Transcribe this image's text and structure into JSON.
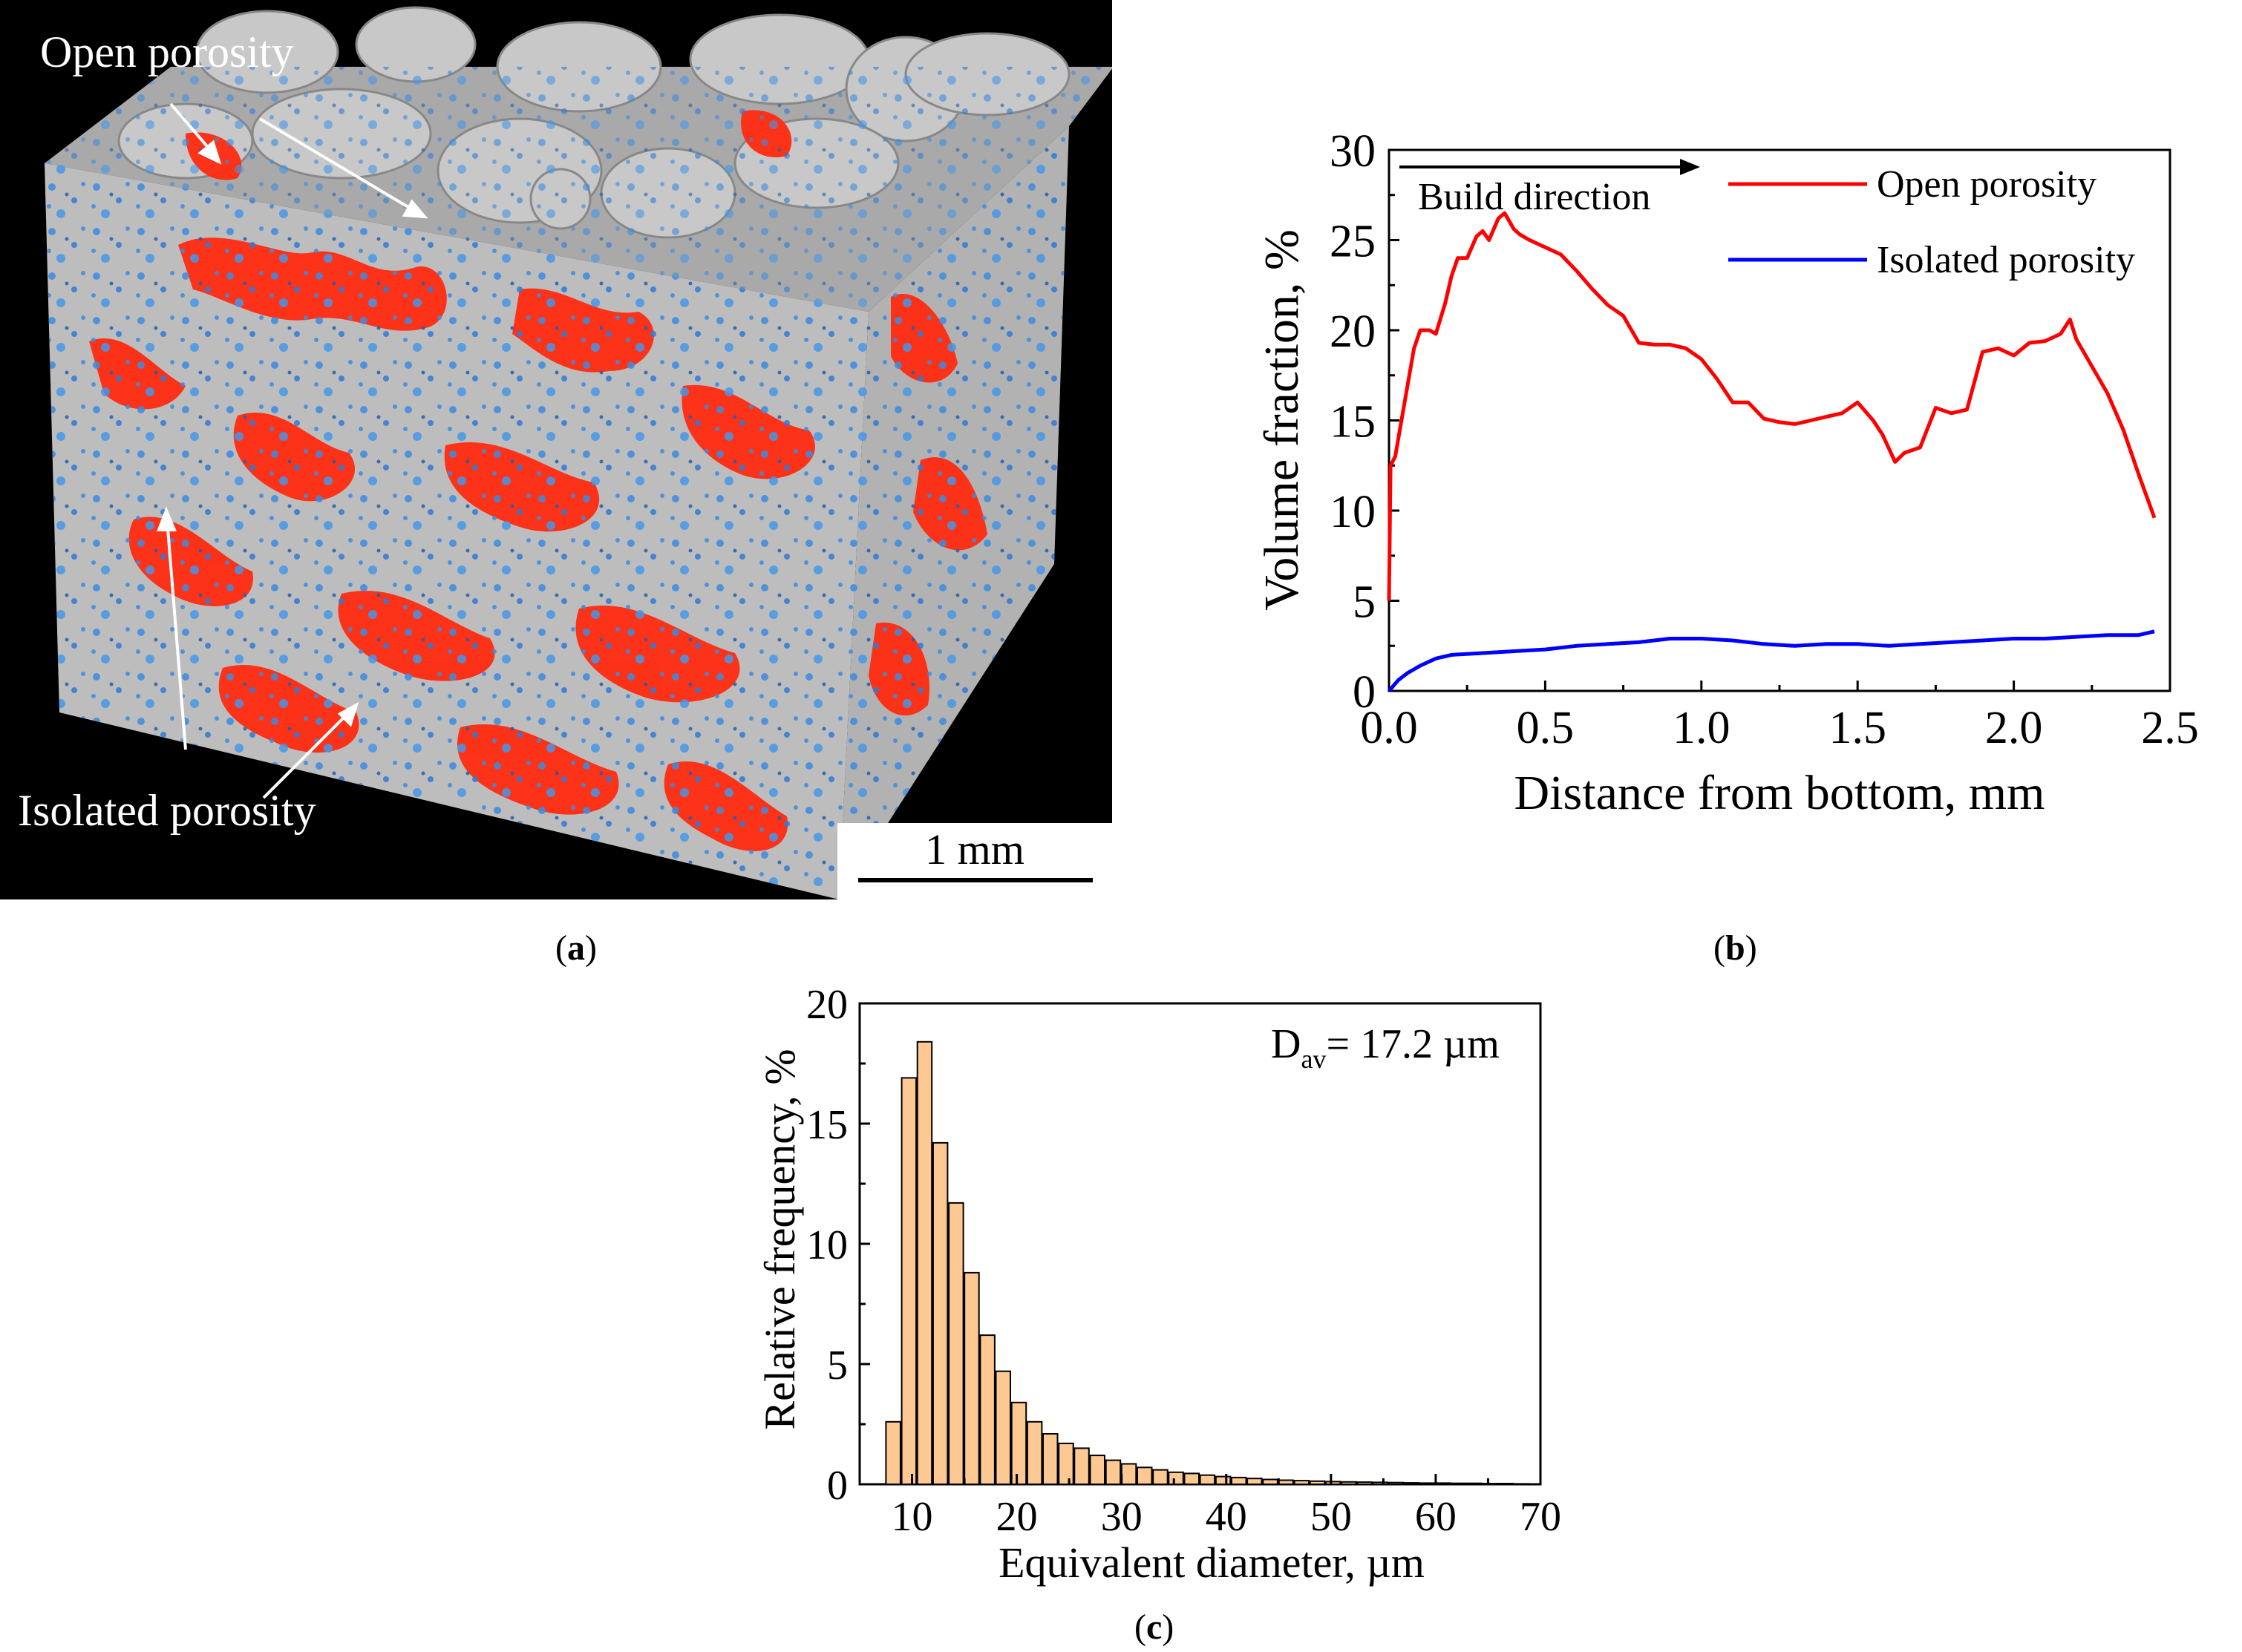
{
  "figure": {
    "panels": [
      {
        "id": "a",
        "caption_open": "(",
        "caption_letter": "a",
        "caption_close": ")",
        "annotations": {
          "open_porosity": "Open porosity",
          "isolated_porosity": "Isolated porosity",
          "scale_bar": "1 mm"
        }
      },
      {
        "id": "b",
        "caption_open": "(",
        "caption_letter": "b",
        "caption_close": ")",
        "build_direction": "Build direction"
      },
      {
        "id": "c",
        "caption_open": "(",
        "caption_letter": "c",
        "caption_close": ")",
        "annotation_main": "D",
        "annotation_sub": "av",
        "annotation_rest": "= 17.2 µm"
      }
    ]
  },
  "colors": {
    "open_porosity": "#ff0000",
    "isolated_porosity": "#0000ff",
    "bar_fill": "#fdc891",
    "bar_stroke": "#000000",
    "matrix_gray": "#b9b9b9",
    "pore_blue": "#3c8be0"
  },
  "chart_data": [
    {
      "type": "line",
      "panel": "b",
      "xlabel": "Distance from bottom, mm",
      "ylabel": "Volume fraction, %",
      "xlim": [
        0,
        2.5
      ],
      "ylim": [
        0,
        30
      ],
      "xticks": [
        "0.0",
        "0.5",
        "1.0",
        "1.5",
        "2.0",
        "2.5"
      ],
      "yticks": [
        "0",
        "5",
        "10",
        "15",
        "20",
        "25",
        "30"
      ],
      "annotation": "Build direction",
      "legend_position": "top-right",
      "series": [
        {
          "name": "Open porosity",
          "color": "#ff0000",
          "x": [
            0.0,
            0.005,
            0.02,
            0.05,
            0.08,
            0.1,
            0.13,
            0.15,
            0.18,
            0.2,
            0.22,
            0.25,
            0.28,
            0.3,
            0.32,
            0.35,
            0.37,
            0.4,
            0.42,
            0.45,
            0.5,
            0.55,
            0.6,
            0.65,
            0.7,
            0.75,
            0.8,
            0.85,
            0.9,
            0.95,
            1.0,
            1.05,
            1.1,
            1.15,
            1.2,
            1.25,
            1.3,
            1.35,
            1.4,
            1.45,
            1.5,
            1.55,
            1.58,
            1.62,
            1.65,
            1.7,
            1.75,
            1.8,
            1.85,
            1.9,
            1.95,
            2.0,
            2.05,
            2.1,
            2.15,
            2.18,
            2.2,
            2.25,
            2.3,
            2.35,
            2.4,
            2.45
          ],
          "y": [
            5,
            12.5,
            13,
            16,
            19,
            20,
            20,
            19.8,
            21.5,
            23,
            24,
            24,
            25.2,
            25.5,
            25,
            26.2,
            26.5,
            25.6,
            25.3,
            25,
            24.6,
            24.2,
            23.3,
            22.3,
            21.4,
            20.8,
            19.3,
            19.2,
            19.2,
            19.0,
            18.4,
            17.3,
            16.0,
            16.0,
            15.1,
            14.9,
            14.8,
            15.0,
            15.2,
            15.4,
            16.0,
            15.0,
            14.2,
            12.7,
            13.2,
            13.5,
            15.7,
            15.4,
            15.6,
            18.8,
            19.0,
            18.6,
            19.3,
            19.4,
            19.8,
            20.6,
            19.5,
            18.0,
            16.5,
            14.5,
            12.0,
            9.6
          ]
        },
        {
          "name": "Isolated porosity",
          "color": "#0000ff",
          "x": [
            0.0,
            0.03,
            0.06,
            0.1,
            0.15,
            0.2,
            0.3,
            0.4,
            0.5,
            0.6,
            0.7,
            0.8,
            0.9,
            1.0,
            1.1,
            1.2,
            1.3,
            1.4,
            1.5,
            1.6,
            1.7,
            1.8,
            1.9,
            2.0,
            2.1,
            2.2,
            2.3,
            2.4,
            2.45
          ],
          "y": [
            0.0,
            0.6,
            1.0,
            1.4,
            1.8,
            2.0,
            2.1,
            2.2,
            2.3,
            2.5,
            2.6,
            2.7,
            2.9,
            2.9,
            2.8,
            2.6,
            2.5,
            2.6,
            2.6,
            2.5,
            2.6,
            2.7,
            2.8,
            2.9,
            2.9,
            3.0,
            3.1,
            3.1,
            3.3
          ]
        }
      ]
    },
    {
      "type": "bar",
      "panel": "c",
      "xlabel": "Equivalent diameter, µm",
      "ylabel": "Relative frequency, %",
      "xlim": [
        5,
        70
      ],
      "ylim": [
        0,
        20
      ],
      "xticks": [
        "10",
        "20",
        "30",
        "40",
        "50",
        "60",
        "70"
      ],
      "yticks": [
        "0",
        "5",
        "10",
        "15",
        "20"
      ],
      "bin_width": 1.5,
      "bin_centers": [
        8.2,
        9.7,
        11.2,
        12.7,
        14.2,
        15.7,
        17.2,
        18.7,
        20.2,
        21.7,
        23.2,
        24.7,
        26.2,
        27.7,
        29.2,
        30.7,
        32.2,
        33.7,
        35.2,
        36.7,
        38.2,
        39.7,
        41.2,
        42.7,
        44.2,
        45.7,
        47.2,
        48.7,
        50.2,
        51.7,
        53.2,
        54.7,
        56.2,
        57.7,
        59.2,
        60.7,
        62.2,
        63.7,
        65.2,
        66.7,
        68.2
      ],
      "values": [
        2.6,
        16.9,
        18.4,
        14.2,
        11.7,
        8.8,
        6.2,
        4.7,
        3.4,
        2.6,
        2.1,
        1.7,
        1.5,
        1.2,
        1.0,
        0.85,
        0.7,
        0.6,
        0.5,
        0.45,
        0.38,
        0.32,
        0.28,
        0.24,
        0.2,
        0.17,
        0.15,
        0.13,
        0.11,
        0.1,
        0.09,
        0.08,
        0.07,
        0.06,
        0.05,
        0.05,
        0.04,
        0.04,
        0.03,
        0.03,
        0.02
      ]
    }
  ]
}
